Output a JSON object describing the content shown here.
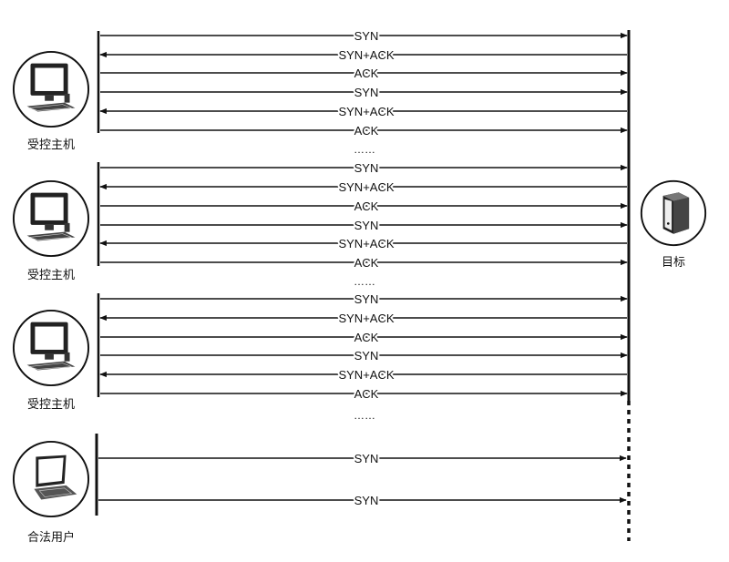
{
  "nodes": {
    "host1": {
      "label": "受控主机",
      "icon": "desktop-computer-icon"
    },
    "host2": {
      "label": "受控主机",
      "icon": "desktop-computer-icon"
    },
    "host3": {
      "label": "受控主机",
      "icon": "desktop-computer-icon"
    },
    "legit_user": {
      "label": "合法用户",
      "icon": "laptop-icon"
    },
    "target": {
      "label": "目标",
      "icon": "server-icon"
    }
  },
  "groups": [
    {
      "host": "host1",
      "messages": [
        {
          "text": "SYN",
          "dir": "to-target"
        },
        {
          "text": "SYN+ACK",
          "dir": "to-host"
        },
        {
          "text": "ACK",
          "dir": "to-target"
        },
        {
          "text": "SYN",
          "dir": "to-target"
        },
        {
          "text": "SYN+ACK",
          "dir": "to-host"
        },
        {
          "text": "ACK",
          "dir": "to-target"
        }
      ],
      "ellipsis": "……"
    },
    {
      "host": "host2",
      "messages": [
        {
          "text": "SYN",
          "dir": "to-target"
        },
        {
          "text": "SYN+ACK",
          "dir": "to-host"
        },
        {
          "text": "ACK",
          "dir": "to-target"
        },
        {
          "text": "SYN",
          "dir": "to-target"
        },
        {
          "text": "SYN+ACK",
          "dir": "to-host"
        },
        {
          "text": "ACK",
          "dir": "to-target"
        }
      ],
      "ellipsis": "……"
    },
    {
      "host": "host3",
      "messages": [
        {
          "text": "SYN",
          "dir": "to-target"
        },
        {
          "text": "SYN+ACK",
          "dir": "to-host"
        },
        {
          "text": "ACK",
          "dir": "to-target"
        },
        {
          "text": "SYN",
          "dir": "to-target"
        },
        {
          "text": "SYN+ACK",
          "dir": "to-host"
        },
        {
          "text": "ACK",
          "dir": "to-target"
        }
      ],
      "ellipsis": "……"
    },
    {
      "host": "legit_user",
      "messages": [
        {
          "text": "SYN",
          "dir": "to-target"
        },
        {
          "text": "SYN",
          "dir": "to-target"
        }
      ],
      "ellipsis": ""
    }
  ],
  "colors": {
    "ink": "#111111",
    "background": "#ffffff"
  }
}
